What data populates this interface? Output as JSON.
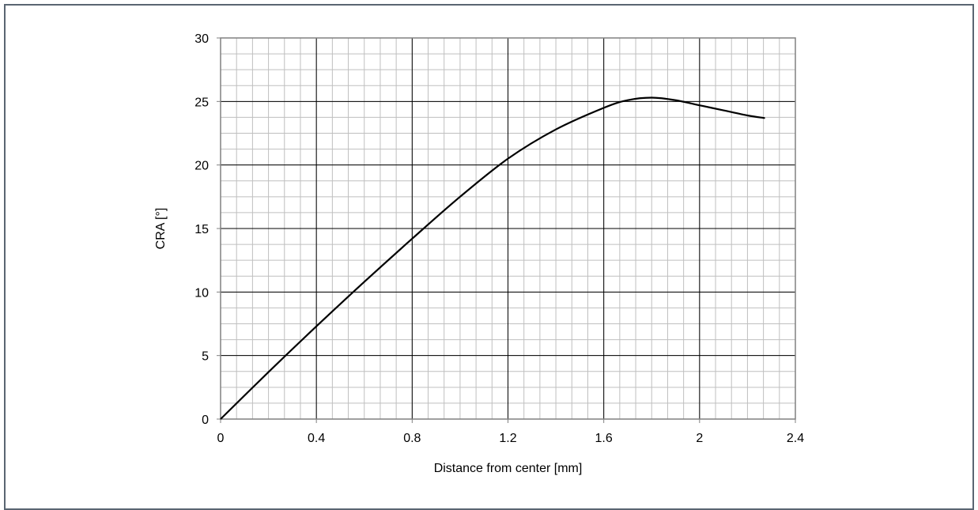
{
  "chart_data": {
    "type": "line",
    "xlabel": "Distance from center [mm]",
    "ylabel": "CRA [°]",
    "xlim": [
      0,
      2.4
    ],
    "ylim": [
      0,
      30
    ],
    "xticks": [
      0,
      0.4,
      0.8,
      1.2,
      1.6,
      2,
      2.4
    ],
    "xtick_labels": [
      "0",
      "0.4",
      "0.8",
      "1.2",
      "1.6",
      "2",
      "2.4"
    ],
    "yticks": [
      0,
      5,
      10,
      15,
      20,
      25,
      30
    ],
    "ytick_labels": [
      "0",
      "5",
      "10",
      "15",
      "20",
      "25",
      "30"
    ],
    "grid": "major and minor",
    "series": [
      {
        "x": [
          0,
          0.2,
          0.4,
          0.6,
          0.8,
          1.0,
          1.2,
          1.4,
          1.6,
          1.7,
          1.8,
          1.9,
          2.0,
          2.1,
          2.2,
          2.27
        ],
        "y": [
          0,
          3.7,
          7.3,
          10.8,
          14.2,
          17.5,
          20.5,
          22.8,
          24.5,
          25.1,
          25.3,
          25.1,
          24.7,
          24.3,
          23.9,
          23.7
        ]
      }
    ]
  },
  "colors": {
    "line": "#000000",
    "major_grid": "#000000",
    "minor_grid": "#bfbfbf",
    "plot_border": "#808080",
    "frame_border": "#5a6572"
  }
}
